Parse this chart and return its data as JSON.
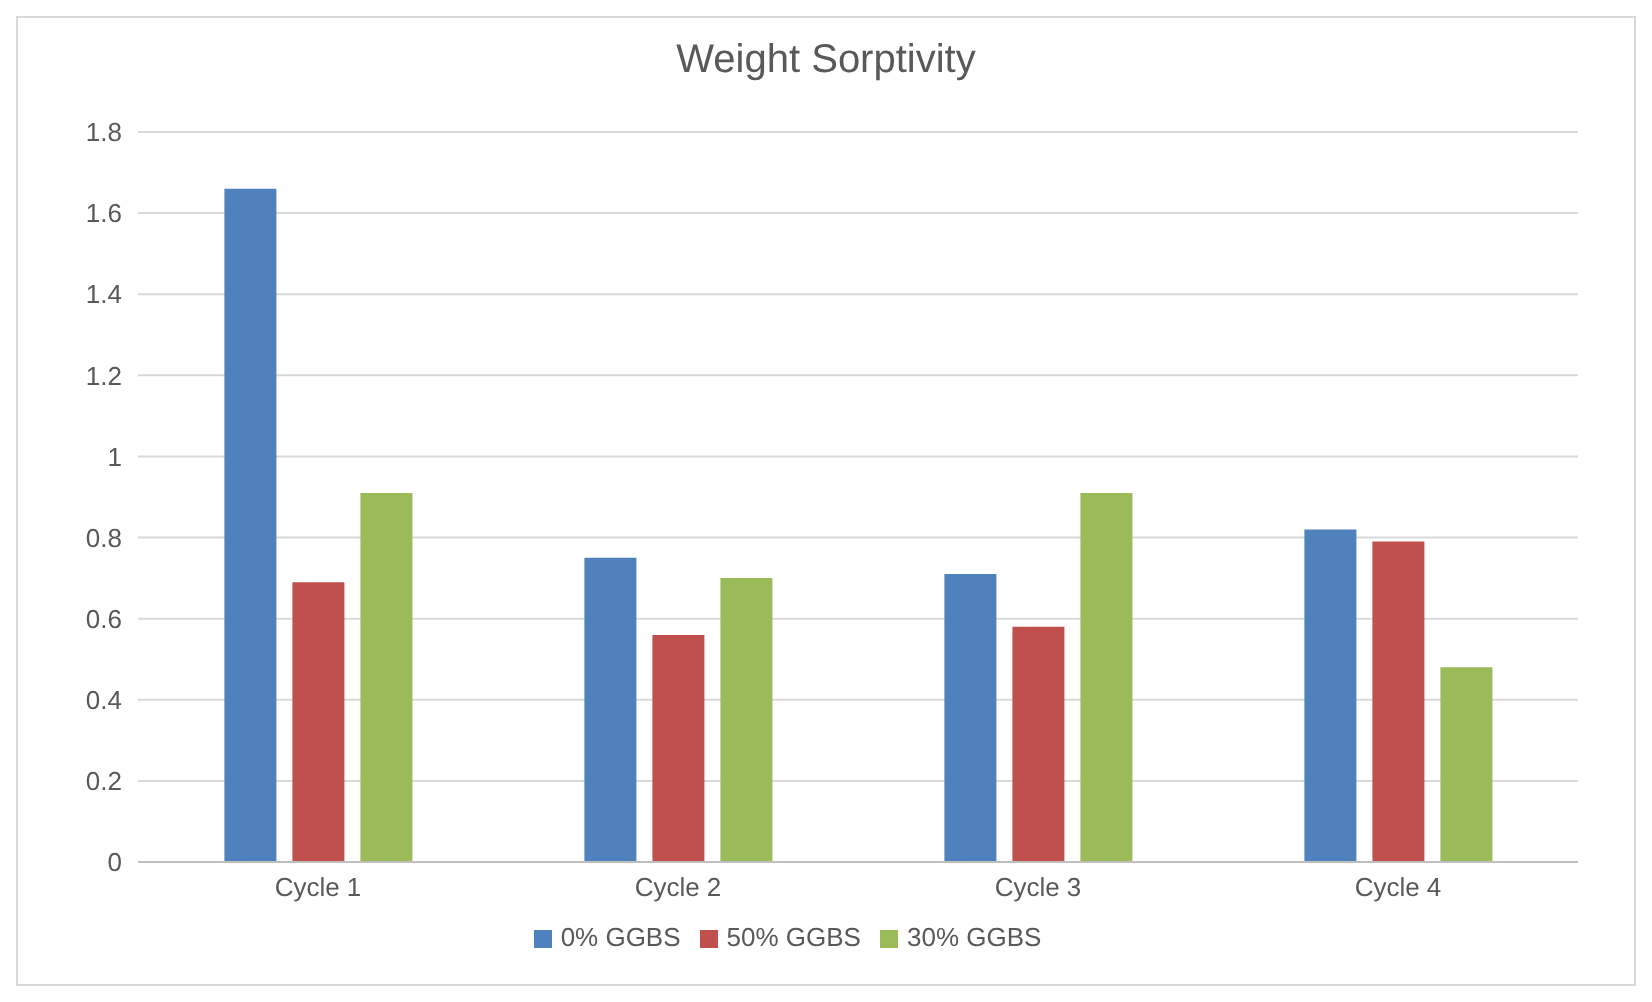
{
  "chart_data": {
    "type": "bar",
    "title": "Weight Sorptivity",
    "categories": [
      "Cycle 1",
      "Cycle 2",
      "Cycle 3",
      "Cycle 4"
    ],
    "series": [
      {
        "name": "0% GGBS",
        "color": "#4f81bd",
        "values": [
          1.66,
          0.75,
          0.71,
          0.82
        ]
      },
      {
        "name": "50% GGBS",
        "color": "#c0504d",
        "values": [
          0.69,
          0.56,
          0.58,
          0.79
        ]
      },
      {
        "name": "30% GGBS",
        "color": "#9bbb59",
        "values": [
          0.91,
          0.7,
          0.91,
          0.48
        ]
      }
    ],
    "ylim": [
      0,
      1.8
    ],
    "yticks": [
      0,
      0.2,
      0.4,
      0.6,
      0.8,
      1,
      1.2,
      1.4,
      1.6,
      1.8
    ],
    "grid": "y",
    "legend": "bottom"
  }
}
